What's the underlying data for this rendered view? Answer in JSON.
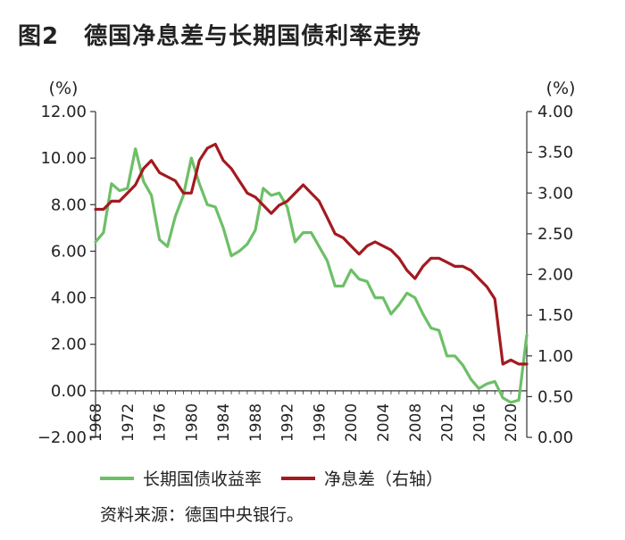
{
  "title": {
    "fig_num": "图2",
    "text": "德国净息差与长期国债利率走势"
  },
  "source_note": "资料来源：德国中央银行。",
  "colors": {
    "green": "#6dbf67",
    "red": "#a31a20",
    "axis": "#333333"
  },
  "chart_data": {
    "type": "line",
    "title": "德国净息差与长期国债利率走势",
    "left_axis": {
      "unit": "(%)",
      "ylim": [
        -2,
        12
      ],
      "ticks": [
        "−2.00",
        "0.00",
        "2.00",
        "4.00",
        "6.00",
        "8.00",
        "10.00",
        "12.00"
      ],
      "tick_values": [
        -2,
        0,
        2,
        4,
        6,
        8,
        10,
        12
      ]
    },
    "right_axis": {
      "unit": "(%)",
      "ylim": [
        0,
        4
      ],
      "ticks": [
        "0.00",
        "0.50",
        "1.00",
        "1.50",
        "2.00",
        "2.50",
        "3.00",
        "3.50",
        "4.00"
      ],
      "tick_values": [
        0,
        0.5,
        1,
        1.5,
        2,
        2.5,
        3,
        3.5,
        4
      ]
    },
    "x_axis": {
      "xlim": [
        1968,
        2022
      ],
      "ticks": [
        "1968",
        "1972",
        "1976",
        "1980",
        "1984",
        "1988",
        "1992",
        "1996",
        "2000",
        "2004",
        "2008",
        "2012",
        "2016",
        "2020"
      ],
      "tick_values": [
        1968,
        1972,
        1976,
        1980,
        1984,
        1988,
        1992,
        1996,
        2000,
        2004,
        2008,
        2012,
        2016,
        2020
      ]
    },
    "x": [
      1968,
      1969,
      1970,
      1971,
      1972,
      1973,
      1974,
      1975,
      1976,
      1977,
      1978,
      1979,
      1980,
      1981,
      1982,
      1983,
      1984,
      1985,
      1986,
      1987,
      1988,
      1989,
      1990,
      1991,
      1992,
      1993,
      1994,
      1995,
      1996,
      1997,
      1998,
      1999,
      2000,
      2001,
      2002,
      2003,
      2004,
      2005,
      2006,
      2007,
      2008,
      2009,
      2010,
      2011,
      2012,
      2013,
      2014,
      2015,
      2016,
      2017,
      2018,
      2019,
      2020,
      2021,
      2022
    ],
    "series": [
      {
        "name": "长期国债收益率",
        "axis": "left",
        "color": "#6dbf67",
        "values": [
          6.4,
          6.8,
          8.9,
          8.6,
          8.7,
          10.4,
          9.0,
          8.4,
          6.5,
          6.2,
          7.5,
          8.4,
          10.0,
          8.9,
          8.0,
          7.9,
          7.0,
          5.8,
          6.0,
          6.3,
          6.9,
          8.7,
          8.4,
          8.5,
          7.9,
          6.4,
          6.8,
          6.8,
          6.2,
          5.6,
          4.5,
          4.5,
          5.2,
          4.8,
          4.7,
          4.0,
          4.0,
          3.3,
          3.7,
          4.2,
          4.0,
          3.3,
          2.7,
          2.6,
          1.5,
          1.5,
          1.1,
          0.5,
          0.1,
          0.3,
          0.4,
          -0.3,
          -0.5,
          -0.4,
          2.4
        ]
      },
      {
        "name": "净息差（右轴）",
        "axis": "right",
        "color": "#a31a20",
        "values": [
          2.8,
          2.8,
          2.9,
          2.9,
          3.0,
          3.1,
          3.3,
          3.4,
          3.25,
          3.2,
          3.15,
          3.0,
          3.0,
          3.4,
          3.55,
          3.6,
          3.4,
          3.3,
          3.15,
          3.0,
          2.95,
          2.85,
          2.75,
          2.85,
          2.9,
          3.0,
          3.1,
          3.0,
          2.9,
          2.7,
          2.5,
          2.45,
          2.35,
          2.25,
          2.35,
          2.4,
          2.35,
          2.3,
          2.2,
          2.05,
          1.95,
          2.1,
          2.2,
          2.2,
          2.15,
          2.1,
          2.1,
          2.05,
          1.95,
          1.85,
          1.7,
          0.9,
          0.95,
          0.9,
          0.9
        ]
      }
    ]
  }
}
